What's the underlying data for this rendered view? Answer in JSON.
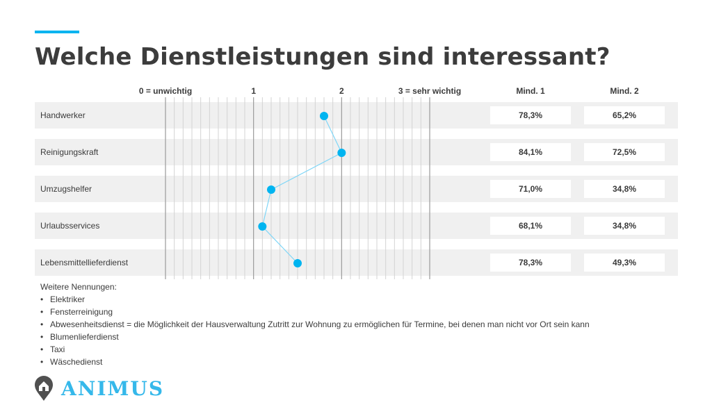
{
  "title": "Welche Dienstleistungen sind interessant?",
  "colors": {
    "accent": "#00b4f0",
    "marker": "#00b4f0",
    "line": "#7fd6f7",
    "row_bg": "#f0f0f0",
    "title": "#3c3c3c"
  },
  "chart_data": {
    "type": "line",
    "orientation": "horizontal",
    "x_ticks": [
      {
        "value": 0,
        "label": "0 = unwichtig"
      },
      {
        "value": 1,
        "label": "1"
      },
      {
        "value": 2,
        "label": "2"
      },
      {
        "value": 3,
        "label": "3 = sehr wichtig"
      }
    ],
    "xlim": [
      0,
      3
    ],
    "minor_grid_step": 0.1,
    "categories": [
      "Handwerker",
      "Reinigungskraft",
      "Umzugshelfer",
      "Urlaubsservices",
      "Lebensmittellieferdienst"
    ],
    "values": [
      1.8,
      2.0,
      1.2,
      1.1,
      1.5
    ],
    "table_columns": [
      "Mind. 1",
      "Mind. 2"
    ],
    "table_values": [
      [
        "78,3%",
        "65,2%"
      ],
      [
        "84,1%",
        "72,5%"
      ],
      [
        "71,0%",
        "34,8%"
      ],
      [
        "68,1%",
        "34,8%"
      ],
      [
        "78,3%",
        "49,3%"
      ]
    ]
  },
  "footnotes": {
    "intro": "Weitere Nennungen:",
    "items": [
      "Elektriker",
      "Fensterreinigung",
      "Abwesenheitsdienst = die Möglichkeit der Hausverwaltung Zutritt zur Wohnung zu ermöglichen für Termine, bei denen man nicht vor Ort sein kann",
      "Blumenlieferdienst",
      "Taxi",
      "Wäschedienst"
    ]
  },
  "brand": {
    "name": "ANIMUS",
    "icon": "house-pin-icon",
    "color": "#35b8ea"
  }
}
